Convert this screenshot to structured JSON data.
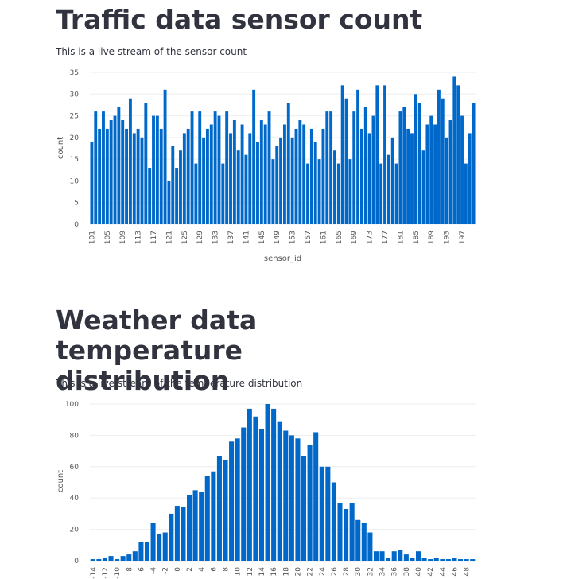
{
  "chart_data": [
    {
      "type": "bar",
      "title": "Traffic data sensor count",
      "subtitle": "This is a live stream of the sensor count",
      "x_label": "sensor_id",
      "y_label": "count",
      "color": "#0068c9",
      "grid": true,
      "x": [
        101,
        102,
        103,
        104,
        105,
        106,
        107,
        108,
        109,
        110,
        111,
        112,
        113,
        114,
        115,
        116,
        117,
        118,
        119,
        120,
        121,
        122,
        123,
        124,
        125,
        126,
        127,
        128,
        129,
        130,
        131,
        132,
        133,
        134,
        135,
        136,
        137,
        138,
        139,
        140,
        141,
        142,
        143,
        144,
        145,
        146,
        147,
        148,
        149,
        150,
        151,
        152,
        153,
        154,
        155,
        156,
        157,
        158,
        159,
        160,
        161,
        162,
        163,
        164,
        165,
        166,
        167,
        168,
        169,
        170,
        171,
        172,
        173,
        174,
        175,
        176,
        177,
        178,
        179,
        180,
        181,
        182,
        183,
        184,
        185,
        186,
        187,
        188,
        189,
        190,
        191,
        192,
        193,
        194,
        195,
        196,
        197,
        198,
        199,
        200
      ],
      "values": [
        19,
        26,
        22,
        26,
        22,
        24,
        25,
        27,
        24,
        22,
        29,
        21,
        22,
        20,
        28,
        13,
        25,
        25,
        22,
        31,
        10,
        18,
        13,
        17,
        21,
        22,
        26,
        14,
        26,
        20,
        22,
        23,
        26,
        25,
        14,
        26,
        21,
        24,
        17,
        23,
        16,
        21,
        31,
        19,
        24,
        23,
        26,
        15,
        18,
        20,
        23,
        28,
        20,
        22,
        24,
        23,
        14,
        22,
        19,
        15,
        22,
        26,
        26,
        17,
        14,
        32,
        29,
        15,
        26,
        31,
        22,
        27,
        21,
        25,
        32,
        14,
        32,
        16,
        20,
        14,
        26,
        27,
        22,
        21,
        30,
        28,
        17,
        23,
        25,
        23,
        31,
        29,
        20,
        24,
        34,
        32,
        25,
        14,
        21,
        28
      ],
      "xlim": [
        100.5,
        200.5
      ],
      "xticks": [
        101,
        105,
        109,
        113,
        117,
        121,
        125,
        129,
        133,
        137,
        141,
        145,
        149,
        153,
        157,
        161,
        165,
        169,
        173,
        177,
        181,
        185,
        189,
        193,
        197
      ],
      "ylim": [
        0,
        35
      ],
      "yticks": [
        0,
        5,
        10,
        15,
        20,
        25,
        30,
        35
      ]
    },
    {
      "type": "bar",
      "title": "Weather data temperature distribution",
      "subtitle": "This is a live stream of the temperature distribution",
      "y_label": "count",
      "color": "#0068c9",
      "grid": true,
      "x": [
        -14,
        -13,
        -12,
        -11,
        -10,
        -9,
        -8,
        -7,
        -6,
        -5,
        -4,
        -3,
        -2,
        -1,
        0,
        1,
        2,
        3,
        4,
        5,
        6,
        7,
        8,
        9,
        10,
        11,
        12,
        13,
        14,
        15,
        16,
        17,
        18,
        19,
        20,
        21,
        22,
        23,
        24,
        25,
        26,
        27,
        28,
        29,
        30,
        31,
        32,
        33,
        34,
        35,
        36,
        37,
        38,
        39,
        40,
        41,
        42,
        43,
        44,
        45,
        46,
        47,
        48,
        49
      ],
      "values": [
        1,
        1,
        2,
        3,
        1,
        3,
        4,
        6,
        12,
        12,
        24,
        17,
        18,
        30,
        35,
        34,
        42,
        45,
        44,
        54,
        57,
        67,
        64,
        76,
        78,
        85,
        97,
        92,
        84,
        100,
        97,
        89,
        83,
        80,
        78,
        67,
        74,
        82,
        60,
        60,
        50,
        37,
        33,
        37,
        26,
        24,
        18,
        6,
        6,
        2,
        6,
        7,
        4,
        2,
        6,
        2,
        1,
        2,
        1,
        1,
        2,
        1,
        1,
        1
      ],
      "xlim": [
        -14.5,
        49.5
      ],
      "xticks": [
        -14,
        -12,
        -10,
        -8,
        -6,
        -4,
        -2,
        0,
        2,
        4,
        6,
        8,
        10,
        12,
        14,
        16,
        18,
        20,
        22,
        24,
        26,
        28,
        30,
        32,
        34,
        36,
        38,
        40,
        42,
        44,
        46,
        48
      ],
      "ylim": [
        0,
        100
      ],
      "yticks": [
        0,
        20,
        40,
        60,
        80,
        100
      ]
    }
  ]
}
